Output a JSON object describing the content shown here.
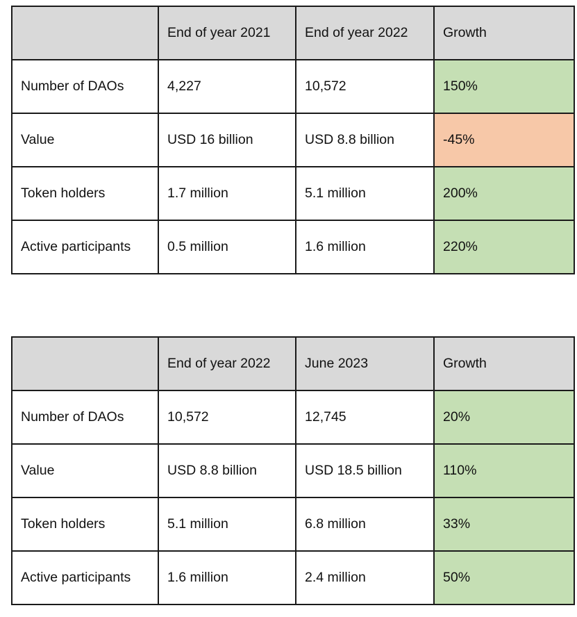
{
  "tables": [
    {
      "headers": [
        "",
        "End of year 2021",
        "End of year 2022",
        "Growth"
      ],
      "rows": [
        {
          "metric": "Number of DAOs",
          "start": "4,227",
          "end": "10,572",
          "growth": "150%",
          "trend": "positive"
        },
        {
          "metric": "Value",
          "start": "USD 16 billion",
          "end": "USD 8.8 billion",
          "growth": "-45%",
          "trend": "negative"
        },
        {
          "metric": "Token holders",
          "start": "1.7 million",
          "end": "5.1 million",
          "growth": "200%",
          "trend": "positive"
        },
        {
          "metric": "Active participants",
          "start": "0.5 million",
          "end": "1.6 million",
          "growth": "220%",
          "trend": "positive"
        }
      ]
    },
    {
      "headers": [
        "",
        "End of year 2022",
        "June 2023",
        "Growth"
      ],
      "rows": [
        {
          "metric": "Number of DAOs",
          "start": "10,572",
          "end": "12,745",
          "growth": "20%",
          "trend": "positive"
        },
        {
          "metric": "Value",
          "start": "USD 8.8 billion",
          "end": "USD 18.5 billion",
          "growth": "110%",
          "trend": "positive"
        },
        {
          "metric": "Token holders",
          "start": "5.1 million",
          "end": "6.8 million",
          "growth": "33%",
          "trend": "positive"
        },
        {
          "metric": "Active participants",
          "start": "1.6 million",
          "end": "2.4 million",
          "growth": "50%",
          "trend": "positive"
        }
      ]
    }
  ],
  "colors": {
    "header_bg": "#d9d9d9",
    "growth_positive": "#c5dfb4",
    "growth_negative": "#f7c8a8",
    "border": "#1a1a1a"
  }
}
